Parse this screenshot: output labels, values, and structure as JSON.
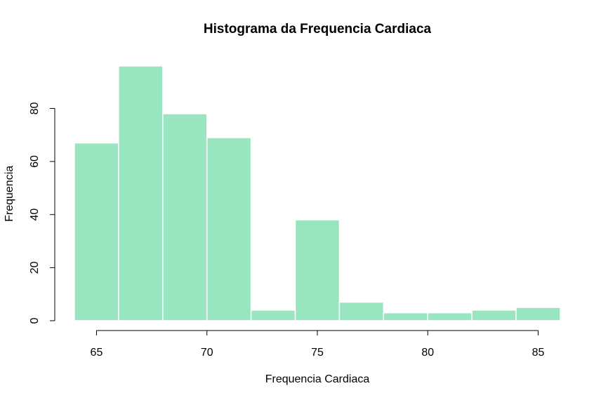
{
  "chart_data": {
    "type": "bar",
    "title": "Histograma da Frequencia Cardiaca",
    "xlabel": "Frequencia Cardiaca",
    "ylabel": "Frequencia",
    "bins": [
      {
        "start": 64,
        "end": 66,
        "count": 67
      },
      {
        "start": 66,
        "end": 68,
        "count": 96
      },
      {
        "start": 68,
        "end": 70,
        "count": 78
      },
      {
        "start": 70,
        "end": 72,
        "count": 69
      },
      {
        "start": 72,
        "end": 74,
        "count": 4
      },
      {
        "start": 74,
        "end": 76,
        "count": 38
      },
      {
        "start": 76,
        "end": 78,
        "count": 7
      },
      {
        "start": 78,
        "end": 80,
        "count": 3
      },
      {
        "start": 80,
        "end": 82,
        "count": 3
      },
      {
        "start": 82,
        "end": 84,
        "count": 4
      },
      {
        "start": 84,
        "end": 86,
        "count": 5
      }
    ],
    "xlim": [
      64,
      86
    ],
    "ylim": [
      0,
      96
    ],
    "x_ticks": [
      65,
      70,
      75,
      80,
      85
    ],
    "y_ticks": [
      0,
      20,
      40,
      60,
      80
    ],
    "bar_color": "#99e5c0",
    "bar_border_color": "#ffffff",
    "grid": false,
    "legend": "none"
  }
}
